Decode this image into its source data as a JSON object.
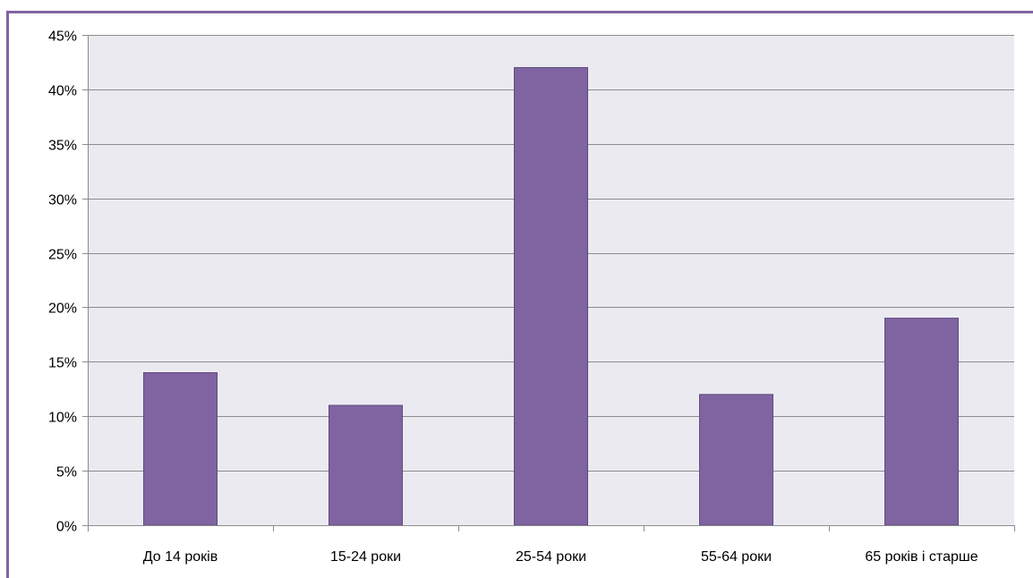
{
  "colors": {
    "bar_fill": "#8064A2",
    "bar_stroke": "#5E4A7D",
    "plot_background": "#ECEAF1",
    "gridline": "#8C8C8C",
    "axis": "#8C8C8C",
    "frame_border": "#8064A2"
  },
  "chart_data": {
    "type": "bar",
    "title": "",
    "xlabel": "",
    "ylabel": "",
    "categories": [
      "До 14 років",
      "15-24 роки",
      "25-54 роки",
      "55-64 роки",
      "65 років і старше"
    ],
    "values": [
      14,
      11,
      42,
      12,
      19
    ],
    "unit": "%",
    "ylim": [
      0,
      45
    ],
    "y_ticks": [
      0,
      5,
      10,
      15,
      20,
      25,
      30,
      35,
      40,
      45
    ],
    "y_tick_labels": [
      "0%",
      "5%",
      "10%",
      "15%",
      "20%",
      "25%",
      "30%",
      "35%",
      "40%",
      "45%"
    ],
    "grid": true,
    "legend": "none"
  }
}
